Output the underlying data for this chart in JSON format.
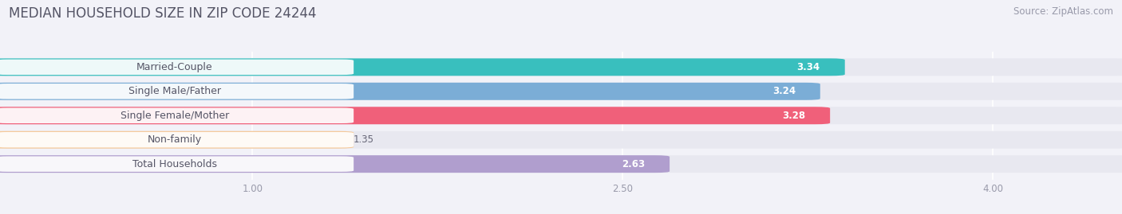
{
  "title": "MEDIAN HOUSEHOLD SIZE IN ZIP CODE 24244",
  "source": "Source: ZipAtlas.com",
  "categories": [
    "Married-Couple",
    "Single Male/Father",
    "Single Female/Mother",
    "Non-family",
    "Total Households"
  ],
  "values": [
    3.34,
    3.24,
    3.28,
    1.35,
    2.63
  ],
  "bar_colors": [
    "#39bfbe",
    "#7badd6",
    "#f0607a",
    "#f5c99a",
    "#b09ece"
  ],
  "xlim_data": [
    0.0,
    4.5
  ],
  "x_min": 0.0,
  "x_max": 4.5,
  "xticks": [
    1.0,
    2.5,
    4.0
  ],
  "xtick_labels": [
    "1.00",
    "2.50",
    "4.00"
  ],
  "background_color": "#f2f2f8",
  "bar_bg_color": "#e8e8f0",
  "title_fontsize": 12,
  "source_fontsize": 8.5,
  "label_fontsize": 9,
  "value_fontsize": 8.5,
  "bar_height": 0.6,
  "label_color": "#555566",
  "value_color_inside": "white",
  "value_color_outside": "#666677"
}
